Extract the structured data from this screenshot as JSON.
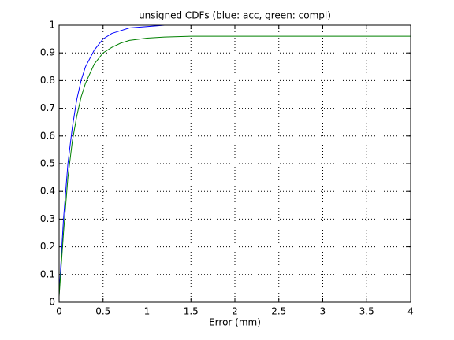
{
  "chart_data": {
    "type": "line",
    "title": "unsigned CDFs (blue: acc, green: compl)",
    "x_label": "Error (mm)",
    "x": [
      0,
      0.05,
      0.1,
      0.15,
      0.2,
      0.25,
      0.3,
      0.4,
      0.5,
      0.6,
      0.7,
      0.8,
      1.0,
      1.2,
      1.5,
      4
    ],
    "series": [
      {
        "name": "acc",
        "color": "#0000ff",
        "values": [
          0.03,
          0.3,
          0.5,
          0.63,
          0.73,
          0.8,
          0.85,
          0.91,
          0.95,
          0.97,
          0.98,
          0.99,
          0.995,
          1,
          1,
          1
        ]
      },
      {
        "name": "compl",
        "color": "#008000",
        "values": [
          0.02,
          0.25,
          0.45,
          0.58,
          0.67,
          0.74,
          0.79,
          0.86,
          0.9,
          0.92,
          0.935,
          0.945,
          0.953,
          0.957,
          0.96,
          0.96
        ]
      }
    ],
    "xlim": [
      0,
      4
    ],
    "xticks": [
      0,
      0.5,
      1,
      1.5,
      2,
      2.5,
      3,
      3.5,
      4
    ],
    "ylim": [
      0,
      1
    ],
    "yticks": [
      0,
      0.1,
      0.2,
      0.3,
      0.4,
      0.5,
      0.6,
      0.7,
      0.8,
      0.9,
      1
    ],
    "grid": true
  }
}
